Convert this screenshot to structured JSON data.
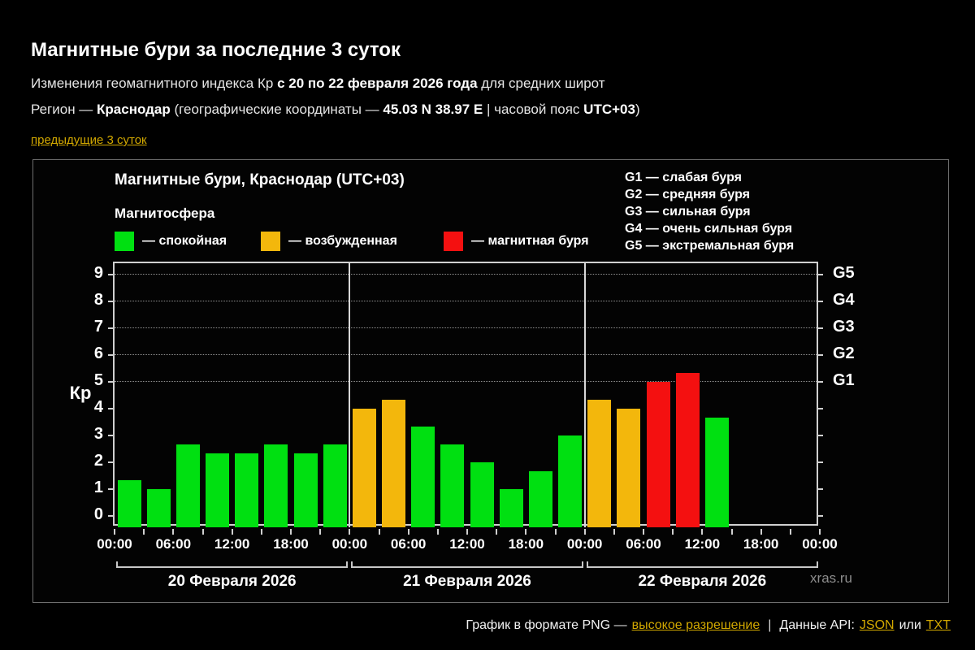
{
  "header": {
    "title": "Магнитные бури за последние 3 суток",
    "subtitle": {
      "pre": "Изменения геомагнитного индекса Кр ",
      "bold": "с 20 по 22 февраля 2026 года",
      "post": " для средних широт"
    },
    "region": {
      "pre": "Регион — ",
      "city": "Краснодар",
      "mid": " (географические координаты — ",
      "coords": "45.03 N 38.97 E",
      "mid2": " | часовой пояс ",
      "tz": "UTC+03",
      "post": ")"
    },
    "prev_link": "предыдущие 3 суток"
  },
  "chart": {
    "title": "Магнитные бури, Краснодар (UTC+03)",
    "legend_title": "Магнитосфера",
    "legend": [
      {
        "name": "quiet",
        "label": "— спокойная",
        "color": "#00e011"
      },
      {
        "name": "excited",
        "label": "— возбужденная",
        "color": "#f3b70c"
      },
      {
        "name": "storm",
        "label": "— магнитная буря",
        "color": "#f41010"
      }
    ],
    "g_legend": [
      "G1 — слабая буря",
      "G2 — средняя буря",
      "G3 — сильная буря",
      "G4 — очень сильная буря",
      "G5 — экстремальная буря"
    ],
    "watermark": "xras.ru"
  },
  "chart_data": {
    "type": "bar",
    "title": "Магнитные бури, Краснодар (UTC+03)",
    "xlabel": "",
    "ylabel": "Кр",
    "ylim": [
      0,
      9
    ],
    "y_ticks": [
      0,
      1,
      2,
      3,
      4,
      5,
      6,
      7,
      8,
      9
    ],
    "grid": "dotted horizontal lines at storm levels only",
    "g_levels": [
      {
        "value": 5,
        "label": "G1"
      },
      {
        "value": 6,
        "label": "G2"
      },
      {
        "value": 7,
        "label": "G3"
      },
      {
        "value": 8,
        "label": "G4"
      },
      {
        "value": 9,
        "label": "G5"
      }
    ],
    "x_tick_labels": [
      "00:00",
      "06:00",
      "12:00",
      "18:00",
      "00:00",
      "06:00",
      "12:00",
      "18:00",
      "00:00",
      "06:00",
      "12:00",
      "18:00",
      "00:00"
    ],
    "days": [
      "20 Февраля 2026",
      "21 Февраля 2026",
      "22 Февраля 2026"
    ],
    "slots_per_day": 8,
    "interval_hours": 3,
    "bars": [
      {
        "kp": 1.33,
        "state": "quiet"
      },
      {
        "kp": 1.0,
        "state": "quiet"
      },
      {
        "kp": 2.67,
        "state": "quiet"
      },
      {
        "kp": 2.33,
        "state": "quiet"
      },
      {
        "kp": 2.33,
        "state": "quiet"
      },
      {
        "kp": 2.67,
        "state": "quiet"
      },
      {
        "kp": 2.33,
        "state": "quiet"
      },
      {
        "kp": 2.67,
        "state": "quiet"
      },
      {
        "kp": 4.0,
        "state": "excited"
      },
      {
        "kp": 4.33,
        "state": "excited"
      },
      {
        "kp": 3.33,
        "state": "quiet"
      },
      {
        "kp": 2.67,
        "state": "quiet"
      },
      {
        "kp": 2.0,
        "state": "quiet"
      },
      {
        "kp": 1.0,
        "state": "quiet"
      },
      {
        "kp": 1.67,
        "state": "quiet"
      },
      {
        "kp": 3.0,
        "state": "quiet"
      },
      {
        "kp": 4.33,
        "state": "excited"
      },
      {
        "kp": 4.0,
        "state": "excited"
      },
      {
        "kp": 5.0,
        "state": "storm"
      },
      {
        "kp": 5.33,
        "state": "storm"
      },
      {
        "kp": 3.67,
        "state": "quiet"
      },
      null,
      null,
      null
    ]
  },
  "footer": {
    "text1": "График в формате PNG —",
    "link_highres": "высокое разрешение",
    "separator": "|",
    "text2": "Данные API:",
    "link_json": "JSON",
    "text3": "или",
    "link_txt": "TXT"
  }
}
